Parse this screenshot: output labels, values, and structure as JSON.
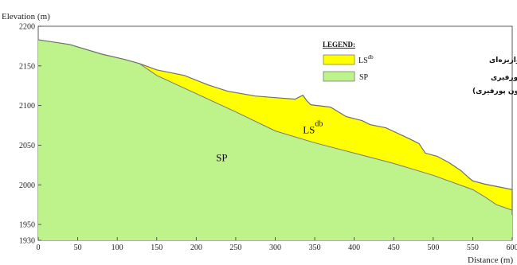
{
  "chart_data": {
    "type": "area",
    "ylabel": "Elevation (m)",
    "xlabel": "Distance (m)",
    "xlim": [
      0,
      600
    ],
    "ylim": [
      1930,
      2200
    ],
    "x_ticks": [
      0,
      50,
      100,
      150,
      200,
      250,
      300,
      350,
      400,
      450,
      500,
      550,
      600
    ],
    "y_ticks": [
      1930,
      1950,
      2000,
      2050,
      2100,
      2150,
      2200
    ],
    "grid": false,
    "legend_position": "top-right",
    "legend": {
      "title": "LEGEND:",
      "entries": [
        {
          "code": "LS",
          "superscript": "db",
          "label": "مصالح واریزه‌ای",
          "color": "#ffff00"
        },
        {
          "code": "SP",
          "superscript": "",
          "label": "مصالح مونزونیت پورفیری",
          "label2": "(سونگون پورفیری)",
          "color": "#bef28a"
        }
      ]
    },
    "units": [
      {
        "code": "LS",
        "superscript": "db",
        "x": 335,
        "y": 2065
      },
      {
        "code": "SP",
        "superscript": "",
        "x": 225,
        "y": 2030
      }
    ],
    "series": [
      {
        "code": "SP",
        "points": [
          [
            0,
            2183
          ],
          [
            40,
            2177
          ],
          [
            80,
            2165
          ],
          [
            110,
            2158
          ],
          [
            128,
            2153
          ],
          [
            150,
            2138
          ],
          [
            200,
            2115
          ],
          [
            250,
            2092
          ],
          [
            300,
            2068
          ],
          [
            350,
            2053
          ],
          [
            400,
            2040
          ],
          [
            450,
            2027
          ],
          [
            500,
            2012
          ],
          [
            550,
            1994
          ],
          [
            565,
            1985
          ],
          [
            580,
            1975
          ],
          [
            600,
            1968
          ],
          [
            610,
            1962
          ]
        ]
      },
      {
        "code": "LS",
        "points": [
          [
            128,
            2153
          ],
          [
            150,
            2145
          ],
          [
            185,
            2138
          ],
          [
            215,
            2126
          ],
          [
            240,
            2118
          ],
          [
            275,
            2112
          ],
          [
            300,
            2110
          ],
          [
            325,
            2108
          ],
          [
            335,
            2113
          ],
          [
            340,
            2106
          ],
          [
            345,
            2101
          ],
          [
            370,
            2098
          ],
          [
            390,
            2086
          ],
          [
            410,
            2081
          ],
          [
            420,
            2076
          ],
          [
            440,
            2072
          ],
          [
            455,
            2065
          ],
          [
            470,
            2058
          ],
          [
            482,
            2052
          ],
          [
            490,
            2040
          ],
          [
            505,
            2036
          ],
          [
            520,
            2028
          ],
          [
            535,
            2018
          ],
          [
            545,
            2009
          ],
          [
            550,
            2005
          ],
          [
            565,
            2001
          ],
          [
            590,
            1996
          ],
          [
            600,
            1994
          ],
          [
            605,
            1994
          ]
        ]
      }
    ]
  }
}
